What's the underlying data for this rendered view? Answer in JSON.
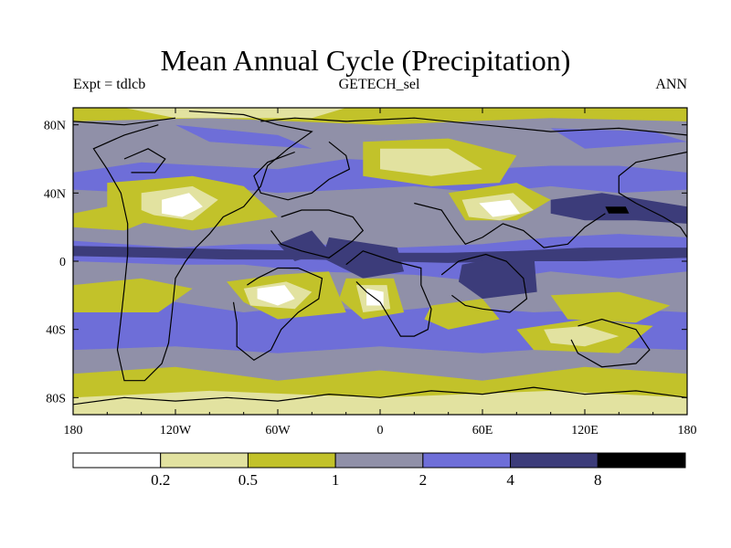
{
  "title": "Mean Annual Cycle (Precipitation)",
  "subtitle_left": "Expt = tdlcb",
  "subtitle_center": "GETECH_sel",
  "subtitle_right": "ANN",
  "map": {
    "projection": "cylindrical-equidistant",
    "lon_range": [
      -180,
      180
    ],
    "lat_range": [
      -90,
      90
    ],
    "x_ticks": [
      {
        "value": -180,
        "label": "180"
      },
      {
        "value": -120,
        "label": "120W"
      },
      {
        "value": -60,
        "label": "60W"
      },
      {
        "value": 0,
        "label": "0"
      },
      {
        "value": 60,
        "label": "60E"
      },
      {
        "value": 120,
        "label": "120E"
      },
      {
        "value": 180,
        "label": "180"
      }
    ],
    "y_ticks": [
      {
        "value": 80,
        "label": "80N"
      },
      {
        "value": 40,
        "label": "40N"
      },
      {
        "value": 0,
        "label": "0"
      },
      {
        "value": -40,
        "label": "40S"
      },
      {
        "value": -80,
        "label": "80S"
      }
    ],
    "field": "precipitation",
    "background_bin": 3
  },
  "colorbar": {
    "colors": [
      "#ffffff",
      "#e2e2a0",
      "#c2c22a",
      "#9090a8",
      "#6e6ed8",
      "#3c3c7a",
      "#000000"
    ],
    "labels": [
      "0.2",
      "0.5",
      "1",
      "2",
      "4",
      "8"
    ]
  }
}
